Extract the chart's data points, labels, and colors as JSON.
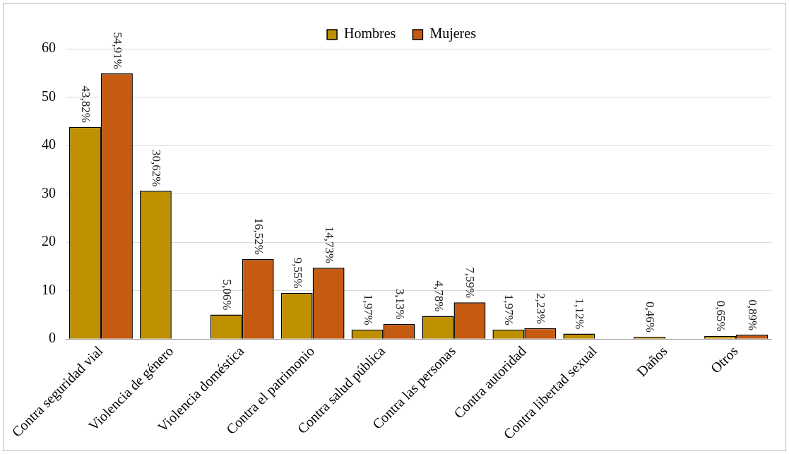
{
  "chart_data": {
    "type": "bar",
    "categories": [
      "Contra seguridad vial",
      "Violencia de género",
      "Violencia doméstica",
      "Contra el patrimonio",
      "Contra salud pública",
      "Contra las personas",
      "Contra autoridad",
      "Contra libertad sexual",
      "Daños",
      "Otros"
    ],
    "series": [
      {
        "name": "Hombres",
        "color": "#bf9000",
        "values": [
          43.82,
          30.62,
          5.06,
          9.55,
          1.97,
          4.78,
          1.97,
          1.12,
          0.46,
          0.65
        ],
        "value_labels": [
          "43,82%",
          "30,62%",
          "5,06%",
          "9,55%",
          "1,97%",
          "4,78%",
          "1,97%",
          "1,12%",
          "0,46%",
          "0,65%"
        ]
      },
      {
        "name": "Mujeres",
        "color": "#c55a11",
        "values": [
          54.91,
          null,
          16.52,
          14.73,
          3.13,
          7.59,
          2.23,
          null,
          null,
          0.89
        ],
        "value_labels": [
          "54,91%",
          null,
          "16,52%",
          "14,73%",
          "3,13%",
          "7,59%",
          "2,23%",
          null,
          null,
          "0,89%"
        ]
      }
    ],
    "ylim": [
      0,
      60
    ],
    "yticks": [
      0,
      10,
      20,
      30,
      40,
      50,
      60
    ],
    "grid": "y",
    "legend": "top"
  }
}
